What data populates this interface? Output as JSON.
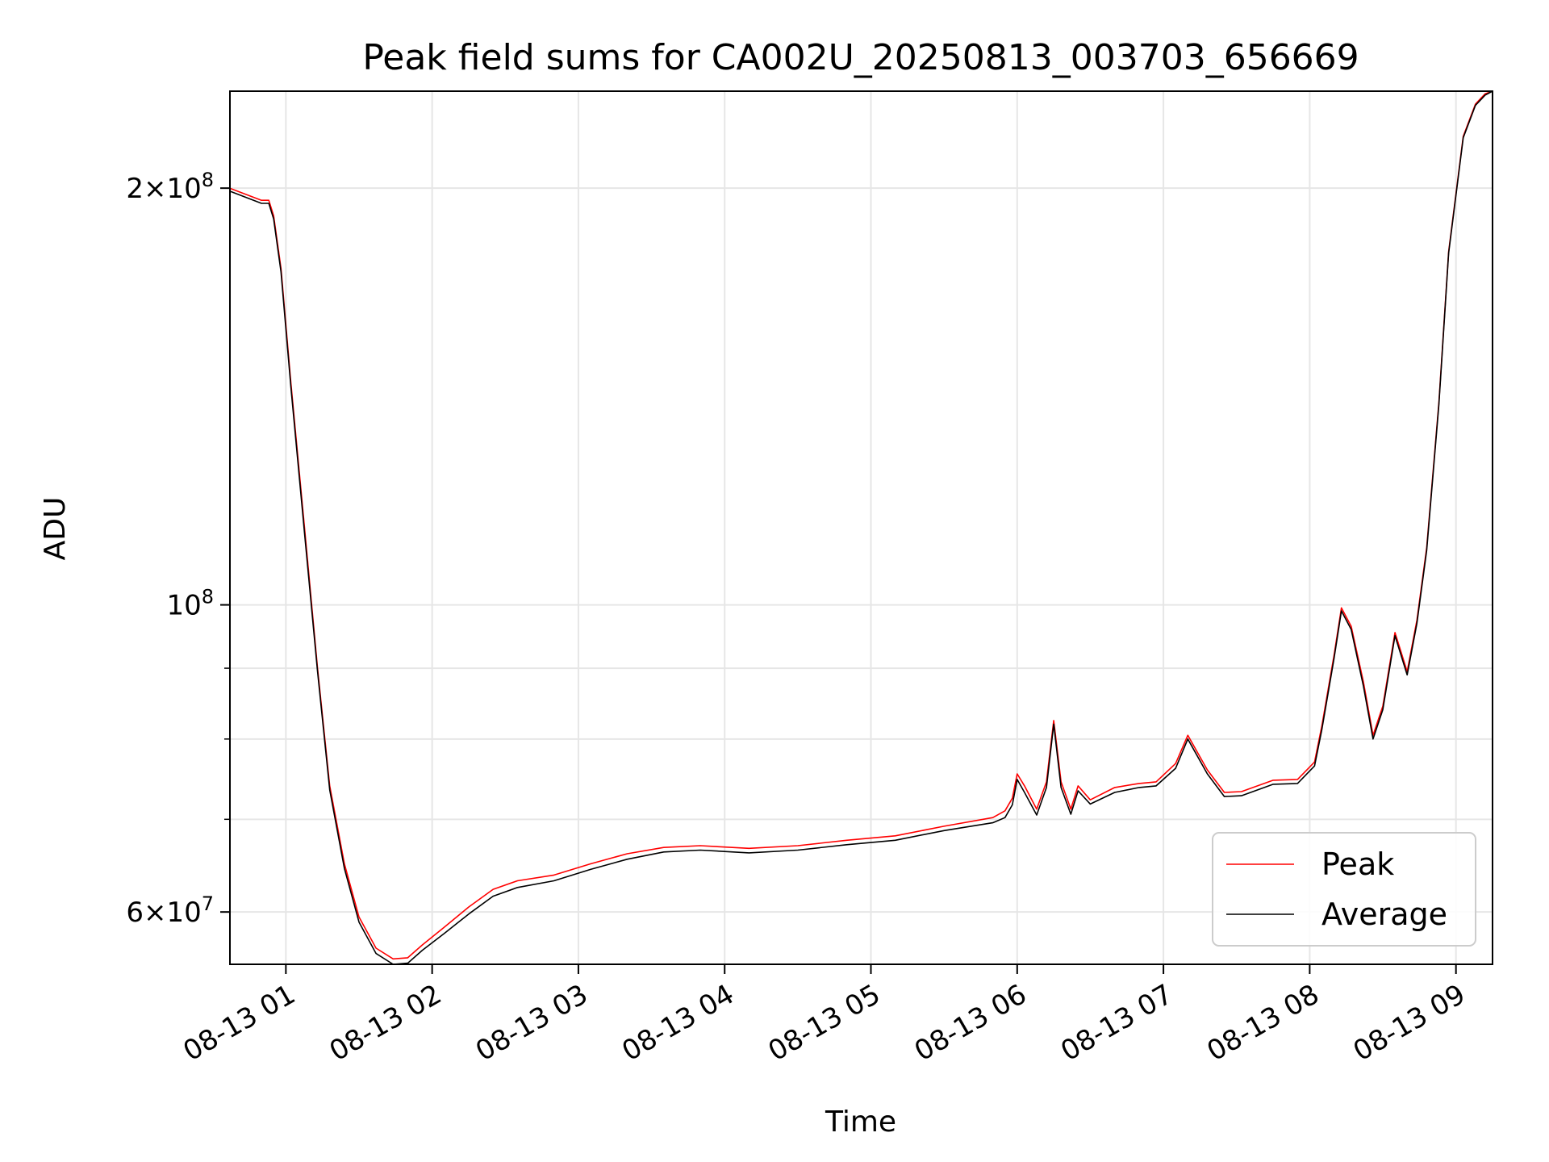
{
  "chart_data": {
    "type": "line",
    "title": "Peak field sums for CA002U_20250813_003703_656669",
    "xlabel": "Time",
    "ylabel": "ADU",
    "x_axis": {
      "type": "time",
      "range": [
        "2025-08-13T00:37:03",
        "2025-08-13T09:15:00"
      ],
      "ticks": [
        {
          "value": "2025-08-13T01:00",
          "label": "08-13 01"
        },
        {
          "value": "2025-08-13T02:00",
          "label": "08-13 02"
        },
        {
          "value": "2025-08-13T03:00",
          "label": "08-13 03"
        },
        {
          "value": "2025-08-13T04:00",
          "label": "08-13 04"
        },
        {
          "value": "2025-08-13T05:00",
          "label": "08-13 05"
        },
        {
          "value": "2025-08-13T06:00",
          "label": "08-13 06"
        },
        {
          "value": "2025-08-13T07:00",
          "label": "08-13 07"
        },
        {
          "value": "2025-08-13T08:00",
          "label": "08-13 08"
        },
        {
          "value": "2025-08-13T09:00",
          "label": "08-13 09"
        }
      ]
    },
    "y_axis": {
      "scale": "log",
      "range": [
        55000000,
        235000000
      ],
      "major_ticks": [
        {
          "value": 100000000,
          "base": "10",
          "exp": "8"
        },
        {
          "value": 200000000,
          "mant": "2",
          "base": "10",
          "exp": "8"
        },
        {
          "value": 60000000,
          "mant": "6",
          "base": "10",
          "exp": "7"
        }
      ],
      "minor_ticks": [
        70000000,
        80000000,
        90000000
      ]
    },
    "grid": true,
    "legend_position": "lower-right",
    "series": [
      {
        "name": "Peak",
        "color": "#ff0000",
        "x": [
          "00:37",
          "00:50",
          "00:53",
          "00:55",
          "00:58",
          "01:02",
          "01:08",
          "01:13",
          "01:18",
          "01:24",
          "01:30",
          "01:37",
          "01:44",
          "01:50",
          "01:56",
          "02:05",
          "02:15",
          "02:25",
          "02:35",
          "02:50",
          "03:05",
          "03:20",
          "03:35",
          "03:50",
          "04:10",
          "04:30",
          "04:50",
          "05:10",
          "05:30",
          "05:50",
          "05:55",
          "05:58",
          "06:00",
          "06:03",
          "06:08",
          "06:12",
          "06:15",
          "06:18",
          "06:22",
          "06:25",
          "06:30",
          "06:40",
          "06:50",
          "06:57",
          "07:05",
          "07:10",
          "07:18",
          "07:25",
          "07:32",
          "07:45",
          "07:55",
          "08:02",
          "08:05",
          "08:10",
          "08:13",
          "08:17",
          "08:22",
          "08:26",
          "08:30",
          "08:35",
          "08:40",
          "08:44",
          "08:48",
          "08:53",
          "08:57",
          "09:03",
          "09:08",
          "09:12",
          "09:15"
        ],
        "y": [
          200000000,
          196000000,
          196000000,
          191000000,
          175000000,
          145000000,
          112000000,
          90000000,
          74000000,
          65000000,
          59500000,
          56500000,
          55500000,
          55600000,
          56800000,
          58500000,
          60500000,
          62300000,
          63200000,
          63800000,
          65000000,
          66100000,
          66800000,
          67000000,
          66700000,
          67000000,
          67600000,
          68100000,
          69200000,
          70200000,
          71000000,
          72500000,
          75500000,
          74000000,
          71200000,
          74500000,
          82500000,
          74500000,
          71200000,
          74000000,
          72300000,
          73800000,
          74300000,
          74500000,
          76800000,
          80500000,
          76000000,
          73200000,
          73300000,
          74700000,
          74800000,
          77000000,
          81800000,
          92000000,
          99500000,
          96500000,
          88000000,
          80500000,
          84500000,
          95500000,
          89500000,
          97500000,
          110000000,
          140000000,
          180000000,
          218000000,
          230000000,
          234000000,
          235000000
        ]
      },
      {
        "name": "Average",
        "color": "#000000",
        "x": [
          "00:37",
          "00:50",
          "00:53",
          "00:55",
          "00:58",
          "01:02",
          "01:08",
          "01:13",
          "01:18",
          "01:24",
          "01:30",
          "01:37",
          "01:44",
          "01:50",
          "01:56",
          "02:05",
          "02:15",
          "02:25",
          "02:35",
          "02:50",
          "03:05",
          "03:20",
          "03:35",
          "03:50",
          "04:10",
          "04:30",
          "04:50",
          "05:10",
          "05:30",
          "05:50",
          "05:55",
          "05:58",
          "06:00",
          "06:03",
          "06:08",
          "06:12",
          "06:15",
          "06:18",
          "06:22",
          "06:25",
          "06:30",
          "06:40",
          "06:50",
          "06:57",
          "07:05",
          "07:10",
          "07:18",
          "07:25",
          "07:32",
          "07:45",
          "07:55",
          "08:02",
          "08:05",
          "08:10",
          "08:13",
          "08:17",
          "08:22",
          "08:26",
          "08:30",
          "08:35",
          "08:40",
          "08:44",
          "08:48",
          "08:53",
          "08:57",
          "09:03",
          "09:08",
          "09:12",
          "09:15"
        ],
        "y": [
          199000000,
          195000000,
          195000000,
          190000000,
          174000000,
          144000000,
          111000000,
          89500000,
          73500000,
          64500000,
          59000000,
          56000000,
          55000000,
          55100000,
          56300000,
          57900000,
          59800000,
          61600000,
          62500000,
          63200000,
          64400000,
          65500000,
          66300000,
          66500000,
          66200000,
          66500000,
          67100000,
          67600000,
          68700000,
          69600000,
          70200000,
          71700000,
          74800000,
          73200000,
          70500000,
          73800000,
          82000000,
          73800000,
          70600000,
          73400000,
          71800000,
          73200000,
          73800000,
          74000000,
          76200000,
          80000000,
          75500000,
          72700000,
          72800000,
          74200000,
          74300000,
          76500000,
          81300000,
          91500000,
          99000000,
          96000000,
          87400000,
          80000000,
          84000000,
          95000000,
          89000000,
          97000000,
          109500000,
          139500000,
          179500000,
          217500000,
          229500000,
          233500000,
          235000000
        ]
      }
    ]
  }
}
